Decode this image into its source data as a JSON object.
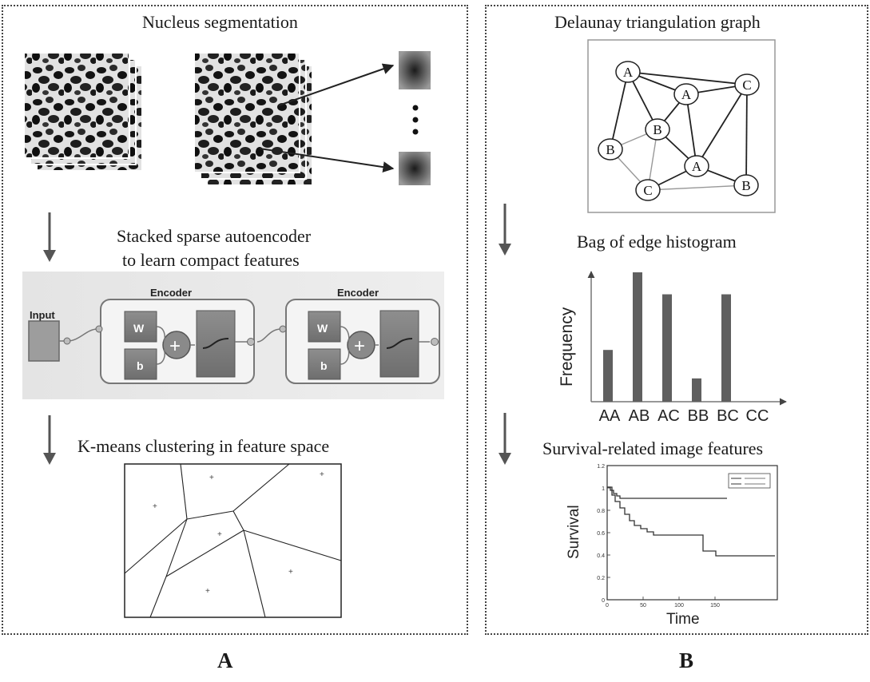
{
  "panel_a": {
    "label": "A",
    "title_segmentation": "Nucleus segmentation",
    "title_autoencoder_line1": "Stacked sparse autoencoder",
    "title_autoencoder_line2": "to  learn compact features",
    "title_kmeans": "K-means clustering in feature space",
    "autoencoder": {
      "input_label": "Input",
      "encoder_label": "Encoder",
      "weight_label": "W",
      "bias_label": "b",
      "plus_label": "+"
    }
  },
  "panel_b": {
    "label": "B",
    "title_delaunay": "Delaunay triangulation graph",
    "title_histogram": "Bag of edge histogram",
    "title_survival": "Survival-related image features",
    "graph_nodes": [
      "A",
      "C",
      "A",
      "B",
      "B",
      "A",
      "C",
      "B"
    ],
    "histogram": {
      "ylabel": "Frequency",
      "categories": [
        "AA",
        "AB",
        "AC",
        "BB",
        "BC",
        "CC"
      ],
      "values": [
        0.4,
        1.0,
        0.83,
        0.18,
        0.83,
        0
      ]
    },
    "survival": {
      "ylabel": "Survival",
      "xlabel": "Time",
      "yticks": [
        "1.2",
        "1",
        "0.8",
        "0.6",
        "0.4",
        "0.2",
        "0"
      ],
      "xticks": [
        "0",
        "50",
        "100",
        "150"
      ]
    }
  }
}
